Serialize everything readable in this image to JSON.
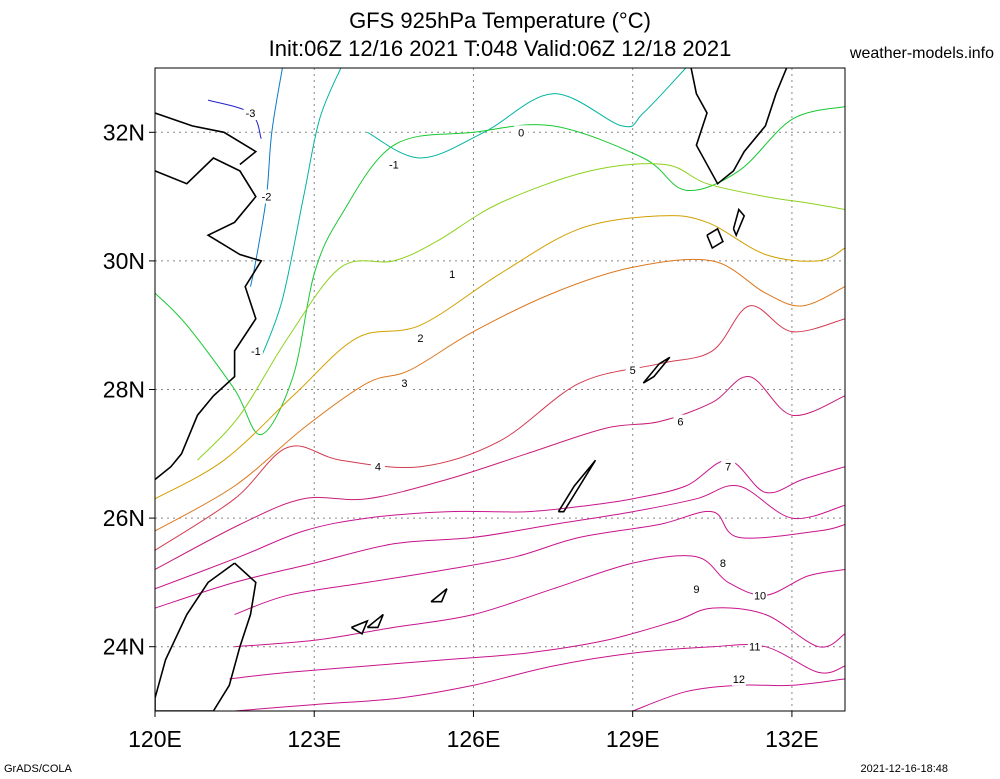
{
  "header": {
    "title_line1": "GFS 925hPa Temperature (°C)",
    "title_line2": "Init:06Z 12/16 2021 T:048 Valid:06Z 12/18 2021",
    "site": "weather-models.info"
  },
  "footer": {
    "left": "GrADS/COLA",
    "right": "2021-12-16-18:48"
  },
  "axes": {
    "x_ticks": [
      {
        "label": "120E",
        "value": 120
      },
      {
        "label": "123E",
        "value": 123
      },
      {
        "label": "126E",
        "value": 126
      },
      {
        "label": "129E",
        "value": 129
      },
      {
        "label": "132E",
        "value": 132
      }
    ],
    "y_ticks": [
      {
        "label": "32N",
        "value": 32
      },
      {
        "label": "30N",
        "value": 30
      },
      {
        "label": "28N",
        "value": 28
      },
      {
        "label": "26N",
        "value": 26
      },
      {
        "label": "24N",
        "value": 24
      }
    ],
    "lon_range": [
      120,
      133
    ],
    "lat_range": [
      23,
      33
    ]
  },
  "contours": [
    {
      "level": "-3",
      "color": "#2020c8",
      "points": [
        [
          121.0,
          32.5
        ],
        [
          121.8,
          32.3
        ],
        [
          122.0,
          31.9
        ]
      ]
    },
    {
      "level": "-2",
      "color": "#0a78c8",
      "points": [
        [
          122.4,
          33.0
        ],
        [
          122.2,
          32.0
        ],
        [
          122.1,
          31.0
        ],
        [
          121.9,
          30.0
        ],
        [
          121.8,
          29.6
        ]
      ]
    },
    {
      "level": "-1",
      "color": "#00b4a0",
      "points": [
        [
          123.5,
          33.0
        ],
        [
          123.1,
          32.2
        ],
        [
          122.8,
          31.0
        ],
        [
          122.4,
          29.4
        ],
        [
          122.0,
          28.5
        ]
      ],
      "label_pos": [
        121.9,
        28.6
      ]
    },
    {
      "level": "-1",
      "color": "#00b4a0",
      "points": [
        [
          124.0,
          32.0
        ],
        [
          125.0,
          31.6
        ],
        [
          126.2,
          32.0
        ],
        [
          127.5,
          32.6
        ],
        [
          128.8,
          32.1
        ],
        [
          129.2,
          32.3
        ],
        [
          130.0,
          33.0
        ]
      ],
      "label_pos": [
        124.5,
        31.5
      ]
    },
    {
      "level": "0",
      "color": "#19c832",
      "points": [
        [
          120.0,
          29.5
        ],
        [
          120.6,
          29.0
        ],
        [
          121.5,
          28.0
        ],
        [
          122.0,
          27.3
        ],
        [
          122.6,
          28.2
        ],
        [
          123.0,
          29.8
        ],
        [
          123.5,
          30.7
        ],
        [
          124.5,
          31.8
        ],
        [
          126.0,
          32.0
        ],
        [
          127.5,
          32.1
        ],
        [
          129.2,
          31.6
        ],
        [
          130.0,
          31.1
        ],
        [
          131.0,
          31.4
        ],
        [
          132.0,
          32.2
        ],
        [
          133.0,
          32.4
        ]
      ],
      "label_pos": [
        126.9,
        32.0
      ]
    },
    {
      "level": "1",
      "color": "#8cd21e",
      "points": [
        [
          120.8,
          26.9
        ],
        [
          121.6,
          27.6
        ],
        [
          122.5,
          28.8
        ],
        [
          123.5,
          29.9
        ],
        [
          124.5,
          30.0
        ],
        [
          125.3,
          30.3
        ],
        [
          126.5,
          30.9
        ],
        [
          128.2,
          31.4
        ],
        [
          129.6,
          31.5
        ],
        [
          130.4,
          31.2
        ],
        [
          131.5,
          31.0
        ],
        [
          132.3,
          30.9
        ],
        [
          133.0,
          30.8
        ]
      ],
      "label_pos": [
        125.6,
        29.8
      ]
    },
    {
      "level": "2",
      "color": "#d2a000",
      "points": [
        [
          120.0,
          26.3
        ],
        [
          121.3,
          26.9
        ],
        [
          122.6,
          27.9
        ],
        [
          123.8,
          28.8
        ],
        [
          125.0,
          29.0
        ],
        [
          126.5,
          29.8
        ],
        [
          128.0,
          30.5
        ],
        [
          129.5,
          30.7
        ],
        [
          130.4,
          30.6
        ],
        [
          131.5,
          30.1
        ],
        [
          132.5,
          30.0
        ],
        [
          133.0,
          30.2
        ]
      ],
      "label_pos": [
        125.0,
        28.8
      ]
    },
    {
      "level": "3",
      "color": "#dc781e",
      "points": [
        [
          120.0,
          25.8
        ],
        [
          121.5,
          26.5
        ],
        [
          122.8,
          27.4
        ],
        [
          124.0,
          28.1
        ],
        [
          124.8,
          28.3
        ],
        [
          126.0,
          28.9
        ],
        [
          127.5,
          29.5
        ],
        [
          129.0,
          29.9
        ],
        [
          130.5,
          30.0
        ],
        [
          131.5,
          29.5
        ],
        [
          132.2,
          29.3
        ],
        [
          133.0,
          29.6
        ]
      ],
      "label_pos": [
        124.7,
        28.1
      ]
    },
    {
      "level": "4",
      "color": "#d23c50",
      "points": [
        [
          120.0,
          25.5
        ],
        [
          121.5,
          26.3
        ],
        [
          122.5,
          27.1
        ],
        [
          123.5,
          26.9
        ],
        [
          125.0,
          26.8
        ],
        [
          126.5,
          27.2
        ],
        [
          128.0,
          28.1
        ],
        [
          129.5,
          28.4
        ],
        [
          130.5,
          28.6
        ],
        [
          131.2,
          29.3
        ],
        [
          132.0,
          28.9
        ],
        [
          133.0,
          29.1
        ]
      ],
      "label_pos": [
        124.2,
        26.8
      ]
    },
    {
      "level": "5",
      "color": "#c81e78",
      "points": [
        [
          120.0,
          25.2
        ],
        [
          121.6,
          25.9
        ],
        [
          122.8,
          26.3
        ],
        [
          124.0,
          26.3
        ],
        [
          125.5,
          26.6
        ],
        [
          127.0,
          27.0
        ],
        [
          128.5,
          27.4
        ],
        [
          129.5,
          27.5
        ],
        [
          130.5,
          27.8
        ],
        [
          131.2,
          28.2
        ],
        [
          132.0,
          27.6
        ],
        [
          133.0,
          27.9
        ]
      ],
      "label_pos": [
        129.0,
        28.3
      ]
    },
    {
      "level": "6",
      "color": "#c8148c",
      "points": [
        [
          120.0,
          24.9
        ],
        [
          121.6,
          25.4
        ],
        [
          122.8,
          25.8
        ],
        [
          124.0,
          26.0
        ],
        [
          125.5,
          26.1
        ],
        [
          127.0,
          26.1
        ],
        [
          128.2,
          26.2
        ],
        [
          129.0,
          26.3
        ],
        [
          130.0,
          26.5
        ],
        [
          130.8,
          26.9
        ],
        [
          131.5,
          26.4
        ],
        [
          132.2,
          26.6
        ],
        [
          133.0,
          26.8
        ]
      ],
      "label_pos": [
        129.9,
        27.5
      ]
    },
    {
      "level": "7",
      "color": "#c8148c",
      "points": [
        [
          120.0,
          24.6
        ],
        [
          121.5,
          25.0
        ],
        [
          123.0,
          25.3
        ],
        [
          124.5,
          25.6
        ],
        [
          126.0,
          25.7
        ],
        [
          127.5,
          25.9
        ],
        [
          129.0,
          26.1
        ],
        [
          130.2,
          26.3
        ],
        [
          131.0,
          26.5
        ],
        [
          132.0,
          26.0
        ],
        [
          133.0,
          26.2
        ]
      ],
      "label_pos": [
        130.8,
        26.8
      ]
    },
    {
      "level": "8",
      "color": "#c8148c",
      "points": [
        [
          121.5,
          24.5
        ],
        [
          122.5,
          24.8
        ],
        [
          124.0,
          25.0
        ],
        [
          125.5,
          25.2
        ],
        [
          126.8,
          25.4
        ],
        [
          128.0,
          25.7
        ],
        [
          129.5,
          25.9
        ],
        [
          130.5,
          26.1
        ],
        [
          131.0,
          25.7
        ],
        [
          132.5,
          25.8
        ],
        [
          133.0,
          25.9
        ]
      ],
      "label_pos": [
        130.7,
        25.3
      ]
    },
    {
      "level": "9",
      "color": "#c8148c",
      "points": [
        [
          121.5,
          24.0
        ],
        [
          123.0,
          24.1
        ],
        [
          124.5,
          24.3
        ],
        [
          126.0,
          24.5
        ],
        [
          127.5,
          24.9
        ],
        [
          129.0,
          25.3
        ],
        [
          130.2,
          25.4
        ],
        [
          130.8,
          25.0
        ],
        [
          131.5,
          24.8
        ],
        [
          132.3,
          25.1
        ],
        [
          133.0,
          25.2
        ]
      ],
      "label_pos": [
        130.2,
        24.9
      ]
    },
    {
      "level": "10",
      "color": "#c8148c",
      "points": [
        [
          121.4,
          23.5
        ],
        [
          122.5,
          23.6
        ],
        [
          124.0,
          23.7
        ],
        [
          125.5,
          23.8
        ],
        [
          127.0,
          23.9
        ],
        [
          128.5,
          24.1
        ],
        [
          129.8,
          24.4
        ],
        [
          130.5,
          24.6
        ],
        [
          131.5,
          24.5
        ],
        [
          132.5,
          24.0
        ],
        [
          133.0,
          24.2
        ]
      ],
      "label_pos": [
        131.4,
        24.8
      ]
    },
    {
      "level": "11",
      "color": "#c8148c",
      "points": [
        [
          121.5,
          23.0
        ],
        [
          123.0,
          23.1
        ],
        [
          124.6,
          23.2
        ],
        [
          126.0,
          23.4
        ],
        [
          127.5,
          23.7
        ],
        [
          129.0,
          23.9
        ],
        [
          130.5,
          24.0
        ],
        [
          131.5,
          24.0
        ],
        [
          132.5,
          23.6
        ],
        [
          133.0,
          23.7
        ]
      ],
      "label_pos": [
        131.3,
        24.0
      ]
    },
    {
      "level": "12",
      "color": "#c8148c",
      "points": [
        [
          129.0,
          23.0
        ],
        [
          130.0,
          23.3
        ],
        [
          131.0,
          23.4
        ],
        [
          132.0,
          23.4
        ],
        [
          133.0,
          23.5
        ]
      ],
      "label_pos": [
        131.0,
        23.5
      ]
    }
  ],
  "coastlines": [
    {
      "name": "china-coast",
      "points": [
        [
          120.0,
          31.4
        ],
        [
          120.6,
          31.2
        ],
        [
          121.1,
          31.6
        ],
        [
          121.6,
          31.4
        ],
        [
          121.9,
          31.0
        ],
        [
          121.5,
          30.6
        ],
        [
          121.0,
          30.4
        ],
        [
          121.6,
          30.1
        ],
        [
          122.0,
          30.0
        ],
        [
          121.7,
          29.6
        ],
        [
          121.9,
          29.1
        ],
        [
          121.5,
          28.6
        ],
        [
          121.5,
          28.2
        ],
        [
          121.1,
          27.9
        ],
        [
          120.8,
          27.6
        ],
        [
          120.5,
          27.0
        ],
        [
          120.3,
          26.8
        ],
        [
          120.0,
          26.6
        ]
      ]
    },
    {
      "name": "china-north-coast",
      "points": [
        [
          120.0,
          32.3
        ],
        [
          120.7,
          32.1
        ],
        [
          121.3,
          32.0
        ],
        [
          121.9,
          31.7
        ],
        [
          121.6,
          31.5
        ]
      ]
    },
    {
      "name": "taiwan",
      "points": [
        [
          121.5,
          25.3
        ],
        [
          121.9,
          25.0
        ],
        [
          121.8,
          24.5
        ],
        [
          121.6,
          24.0
        ],
        [
          121.4,
          23.4
        ],
        [
          121.1,
          23.0
        ],
        [
          120.0,
          23.0
        ],
        [
          120.0,
          23.2
        ],
        [
          120.2,
          23.8
        ],
        [
          120.6,
          24.5
        ],
        [
          121.0,
          25.0
        ],
        [
          121.5,
          25.3
        ]
      ]
    },
    {
      "name": "okinawa",
      "points": [
        [
          127.6,
          26.1
        ],
        [
          127.9,
          26.5
        ],
        [
          128.2,
          26.8
        ],
        [
          128.3,
          26.9
        ],
        [
          128.0,
          26.5
        ],
        [
          127.7,
          26.1
        ],
        [
          127.6,
          26.1
        ]
      ]
    },
    {
      "name": "amami",
      "points": [
        [
          129.2,
          28.1
        ],
        [
          129.5,
          28.4
        ],
        [
          129.7,
          28.5
        ],
        [
          129.4,
          28.2
        ],
        [
          129.2,
          28.1
        ]
      ]
    },
    {
      "name": "kyushu",
      "points": [
        [
          130.1,
          33.0
        ],
        [
          130.2,
          32.6
        ],
        [
          130.4,
          32.3
        ],
        [
          130.2,
          31.8
        ],
        [
          130.6,
          31.2
        ],
        [
          130.9,
          31.4
        ],
        [
          131.1,
          31.7
        ],
        [
          131.5,
          32.1
        ],
        [
          131.7,
          32.6
        ],
        [
          131.9,
          33.0
        ]
      ]
    },
    {
      "name": "yakushima",
      "points": [
        [
          130.4,
          30.4
        ],
        [
          130.6,
          30.5
        ],
        [
          130.7,
          30.3
        ],
        [
          130.5,
          30.2
        ],
        [
          130.4,
          30.4
        ]
      ]
    },
    {
      "name": "tanegashima",
      "points": [
        [
          130.9,
          30.5
        ],
        [
          131.0,
          30.8
        ],
        [
          131.1,
          30.7
        ],
        [
          130.95,
          30.4
        ],
        [
          130.9,
          30.5
        ]
      ]
    },
    {
      "name": "miyako",
      "points": [
        [
          125.2,
          24.7
        ],
        [
          125.5,
          24.9
        ],
        [
          125.4,
          24.7
        ],
        [
          125.2,
          24.7
        ]
      ]
    },
    {
      "name": "ishigaki",
      "points": [
        [
          124.0,
          24.3
        ],
        [
          124.3,
          24.5
        ],
        [
          124.2,
          24.3
        ],
        [
          124.0,
          24.3
        ]
      ]
    },
    {
      "name": "iriomote",
      "points": [
        [
          123.7,
          24.3
        ],
        [
          124.0,
          24.4
        ],
        [
          123.9,
          24.2
        ],
        [
          123.7,
          24.3
        ]
      ]
    }
  ]
}
